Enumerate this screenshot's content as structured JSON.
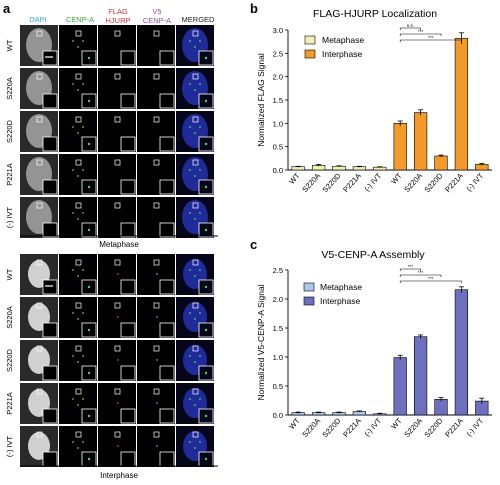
{
  "panel_a": {
    "label": "a",
    "column_headers": {
      "dapi": "DAPI",
      "cenpa": "CENP-A",
      "flag_line1": "FLAG",
      "flag_line2": "HJURP",
      "v5_line1": "V5",
      "v5_line2": "CENP-A",
      "merged": "MERGED"
    },
    "row_labels": [
      "WT",
      "S220A",
      "S220D",
      "P221A",
      "(-) IVT"
    ],
    "metaphase_caption": "Metaphase",
    "interphase_caption": "Interphase"
  },
  "colors": {
    "metaphase_b": "#f3efb3",
    "interphase_b": "#f39a2b",
    "metaphase_c": "#a9c8ec",
    "interphase_c": "#6d70bf",
    "dapi_label": "#3aa9d9",
    "cenpa_label": "#3fae49",
    "flag_label": "#e1322b",
    "v5_label": "#8a4fa5",
    "merged_label": "#222222"
  },
  "chart_data": [
    {
      "panel": "b",
      "type": "bar",
      "title": "FLAG-HJURP Localization",
      "xlabel": "",
      "ylabel": "Normalized FLAG Signal",
      "ylim": [
        0,
        3
      ],
      "yticks": [
        "0.0",
        "0.5",
        "1.0",
        "1.5",
        "2.0",
        "2.5",
        "3.0"
      ],
      "categories": [
        "WT",
        "S220A",
        "S220D",
        "P221A",
        "(-) IVT",
        "WT",
        "S220A",
        "S220D",
        "P221A",
        "(-) IVT"
      ],
      "series": [
        {
          "name": "Metaphase",
          "values": [
            0.07,
            0.1,
            0.08,
            0.07,
            0.06,
            null,
            null,
            null,
            null,
            null
          ],
          "errors": [
            0.01,
            0.02,
            0.01,
            0.01,
            0.01,
            null,
            null,
            null,
            null,
            null
          ]
        },
        {
          "name": "Interphase",
          "values": [
            null,
            null,
            null,
            null,
            null,
            1.0,
            1.23,
            0.3,
            2.82,
            0.12
          ],
          "errors": [
            null,
            null,
            null,
            null,
            null,
            0.05,
            0.06,
            0.02,
            0.12,
            0.02
          ]
        }
      ],
      "significance": [
        "n.s.",
        "***",
        "***"
      ],
      "legend": "top-left",
      "grid": false
    },
    {
      "panel": "c",
      "type": "bar",
      "title": "V5-CENP-A Assembly",
      "xlabel": "",
      "ylabel": "Normalized V5-CENP-A Signal",
      "ylim": [
        0,
        2.5
      ],
      "yticks": [
        "0.0",
        "0.5",
        "1.0",
        "1.5",
        "2.0",
        "2.5"
      ],
      "categories": [
        "WT",
        "S220A",
        "S220D",
        "P221A",
        "(-) IVT",
        "WT",
        "S220A",
        "S220D",
        "P221A",
        "(-) IVT"
      ],
      "series": [
        {
          "name": "Metaphase",
          "values": [
            0.04,
            0.04,
            0.04,
            0.06,
            0.02,
            null,
            null,
            null,
            null,
            null
          ],
          "errors": [
            0.01,
            0.01,
            0.01,
            0.01,
            0.01,
            null,
            null,
            null,
            null,
            null
          ]
        },
        {
          "name": "Interphase",
          "values": [
            null,
            null,
            null,
            null,
            null,
            0.99,
            1.35,
            0.27,
            2.16,
            0.24
          ],
          "errors": [
            null,
            null,
            null,
            null,
            null,
            0.04,
            0.03,
            0.03,
            0.05,
            0.05
          ]
        }
      ],
      "significance": [
        "***",
        "***",
        "***"
      ],
      "legend": "top-left",
      "grid": false
    }
  ]
}
